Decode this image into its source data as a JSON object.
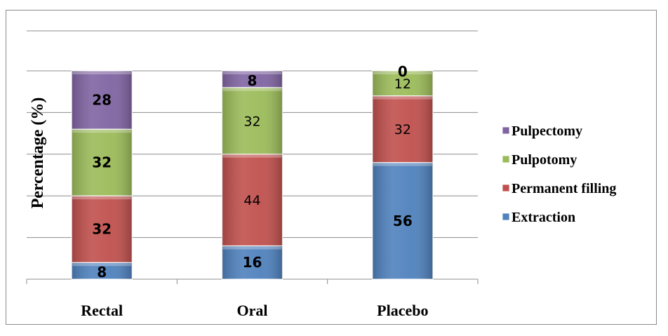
{
  "chart_data": {
    "type": "bar",
    "stacked": true,
    "categories": [
      "Rectal",
      "Oral",
      "Placebo"
    ],
    "ylabel": "Percentage (%)",
    "ylim": [
      0,
      100
    ],
    "grid": true,
    "legend_position": "right",
    "series": [
      {
        "name": "Extraction",
        "color": "#4f81bd",
        "values": [
          8,
          16,
          56
        ],
        "label_text": [
          "8",
          "16",
          "56"
        ],
        "label_bold": [
          true,
          true,
          true
        ]
      },
      {
        "name": "Permanent filling",
        "color": "#c0504d",
        "values": [
          32,
          44,
          32
        ],
        "label_text": [
          "32",
          "44",
          "32"
        ],
        "label_bold": [
          true,
          false,
          false
        ]
      },
      {
        "name": "Pulpotomy",
        "color": "#9bbb59",
        "values": [
          32,
          32,
          12
        ],
        "label_text": [
          "32",
          "32",
          "12"
        ],
        "label_bold": [
          true,
          false,
          false
        ]
      },
      {
        "name": "Pulpectomy",
        "color": "#8064a2",
        "values": [
          28,
          8,
          0
        ],
        "label_text": [
          "28",
          "8",
          "0"
        ],
        "label_bold": [
          true,
          true,
          true
        ]
      }
    ]
  }
}
